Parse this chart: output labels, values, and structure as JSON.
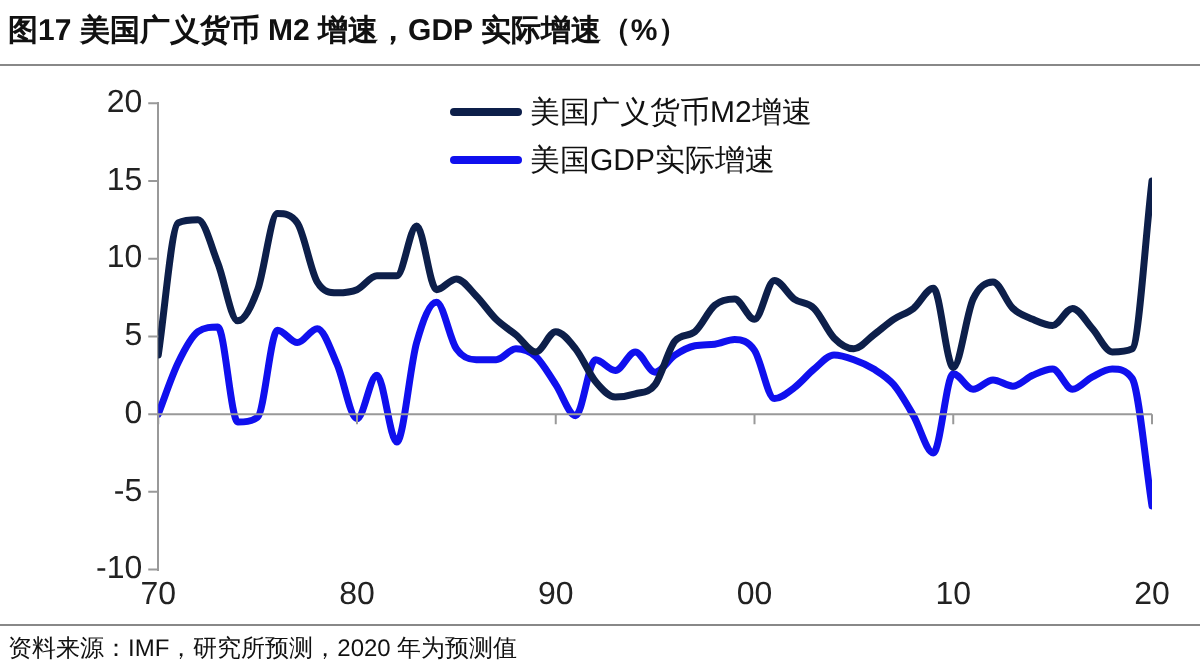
{
  "chart_data": {
    "type": "line",
    "title": "图17 美国广义货币 M2 增速，GDP 实际增速（%）",
    "annotations": [
      "资料来源：IMF，研究所预测，2020 年为预测值"
    ],
    "x": [
      1970,
      1971,
      1972,
      1973,
      1974,
      1975,
      1976,
      1977,
      1978,
      1979,
      1980,
      1981,
      1982,
      1983,
      1984,
      1985,
      1986,
      1987,
      1988,
      1989,
      1990,
      1991,
      1992,
      1993,
      1994,
      1995,
      1996,
      1997,
      1998,
      1999,
      2000,
      2001,
      2002,
      2003,
      2004,
      2005,
      2006,
      2007,
      2008,
      2009,
      2010,
      2011,
      2012,
      2013,
      2014,
      2015,
      2016,
      2017,
      2018,
      2019,
      2020
    ],
    "series": [
      {
        "name": "美国广义货币M2增速",
        "color": "#0d1f4a",
        "values": [
          3.8,
          12.3,
          12.5,
          9.7,
          6.0,
          8.0,
          12.9,
          12.3,
          8.5,
          7.8,
          8.0,
          8.9,
          8.9,
          12.1,
          8.0,
          8.7,
          7.6,
          6.1,
          5.1,
          4.0,
          5.3,
          4.2,
          2.1,
          1.1,
          1.3,
          1.9,
          4.7,
          5.3,
          7.0,
          7.4,
          6.1,
          8.6,
          7.4,
          6.8,
          4.9,
          4.2,
          5.1,
          6.1,
          6.8,
          8.1,
          3.0,
          7.4,
          8.5,
          6.8,
          6.1,
          5.7,
          6.8,
          5.5,
          4.0,
          4.2,
          15.0
        ]
      },
      {
        "name": "美国GDP实际增速",
        "color": "#1010ee",
        "values": [
          0.0,
          3.3,
          5.3,
          5.6,
          -0.5,
          -0.2,
          5.4,
          4.6,
          5.5,
          3.2,
          -0.3,
          2.5,
          -1.8,
          4.6,
          7.2,
          4.2,
          3.5,
          3.5,
          4.2,
          3.7,
          1.9,
          -0.1,
          3.5,
          2.8,
          4.0,
          2.7,
          3.8,
          4.4,
          4.5,
          4.8,
          4.1,
          1.0,
          1.7,
          2.9,
          3.8,
          3.5,
          2.9,
          1.9,
          -0.1,
          -2.5,
          2.6,
          1.6,
          2.2,
          1.8,
          2.5,
          2.9,
          1.6,
          2.4,
          2.9,
          2.3,
          -5.9
        ]
      }
    ],
    "xlim": [
      1970,
      2020
    ],
    "xticks": [
      {
        "value": 1970,
        "label": "70"
      },
      {
        "value": 1980,
        "label": "80"
      },
      {
        "value": 1990,
        "label": "90"
      },
      {
        "value": 2000,
        "label": "00"
      },
      {
        "value": 2010,
        "label": "10"
      },
      {
        "value": 2020,
        "label": "20"
      }
    ],
    "ylim": [
      -10,
      20
    ],
    "yticks": [
      -10,
      -5,
      0,
      5,
      10,
      15,
      20
    ],
    "legend": "top",
    "marker": "none",
    "line_style": "solid"
  }
}
